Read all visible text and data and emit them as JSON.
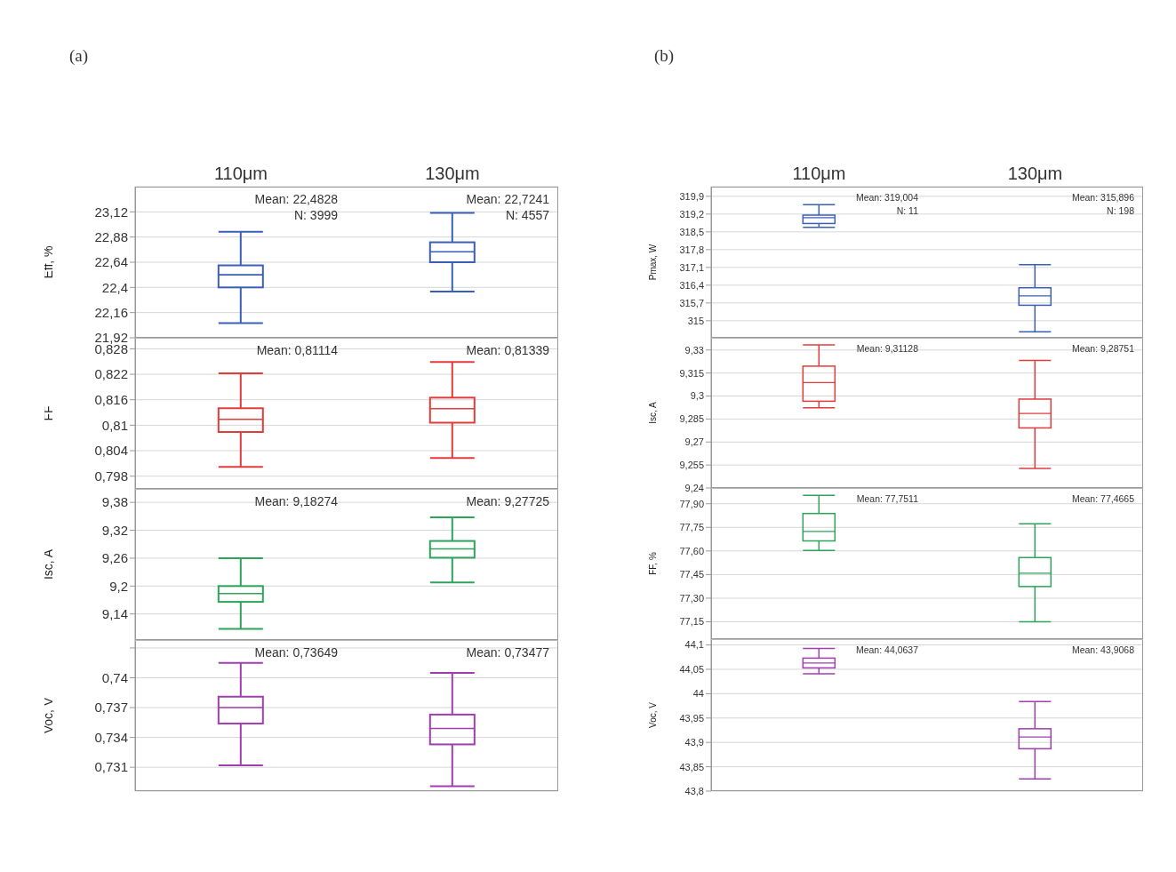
{
  "chart_data": [
    {
      "type": "box",
      "title": "(a)",
      "categories": [
        "110μm",
        "130μm"
      ],
      "ylabel": "Eff, %",
      "color": "#3b5fb6",
      "grid": "y",
      "ylim": [
        21.92,
        23.36
      ],
      "yticks": [
        {
          "value": 21.92,
          "label": "21,92"
        },
        {
          "value": 22.16,
          "label": "22,16"
        },
        {
          "value": 22.4,
          "label": "22,4"
        },
        {
          "value": 22.64,
          "label": "22,64"
        },
        {
          "value": 22.88,
          "label": "22,88"
        },
        {
          "value": 23.12,
          "label": "23,12"
        }
      ],
      "boxes": [
        {
          "low": 22.06,
          "q1": 22.4,
          "median": 22.52,
          "q3": 22.61,
          "high": 22.93
        },
        {
          "low": 22.36,
          "q1": 22.64,
          "median": 22.74,
          "q3": 22.83,
          "high": 23.11
        }
      ],
      "annotations": [
        "Mean: 22,4828",
        "N: 3999",
        "Mean: 22,7241",
        "N: 4557"
      ]
    },
    {
      "type": "box",
      "categories": [
        null,
        null
      ],
      "tick_labels": "y",
      "ylabel": "FF",
      "color": "#e03c3c",
      "grid": "y",
      "ylim": [
        0.795,
        0.8306
      ],
      "yticks": [
        {
          "value": 0.798,
          "label": "0,798"
        },
        {
          "value": 0.804,
          "label": "0,804"
        },
        {
          "value": 0.81,
          "label": "0,81"
        },
        {
          "value": 0.816,
          "label": "0,816"
        },
        {
          "value": 0.822,
          "label": "0,822"
        },
        {
          "value": 0.828,
          "label": "0,828"
        }
      ],
      "boxes": [
        {
          "low": 0.8002,
          "q1": 0.8084,
          "median": 0.8114,
          "q3": 0.814,
          "high": 0.8222
        },
        {
          "low": 0.8023,
          "q1": 0.8106,
          "median": 0.8139,
          "q3": 0.8165,
          "high": 0.8249
        }
      ],
      "annotations": [
        "Mean: 0,81114",
        "Mean: 0,81339"
      ]
    },
    {
      "type": "box",
      "categories": [
        null,
        null
      ],
      "tick_labels": "y",
      "ylabel": "Isc, A",
      "color": "#2ea35a",
      "grid": "y",
      "ylim": [
        9.084,
        9.409
      ],
      "yticks": [
        {
          "value": 9.14,
          "label": "9,14"
        },
        {
          "value": 9.2,
          "label": "9,2"
        },
        {
          "value": 9.26,
          "label": "9,26"
        },
        {
          "value": 9.32,
          "label": "9,32"
        },
        {
          "value": 9.38,
          "label": "9,38"
        }
      ],
      "boxes": [
        {
          "low": 9.108,
          "q1": 9.166,
          "median": 9.184,
          "q3": 9.2,
          "high": 9.26
        },
        {
          "low": 9.208,
          "q1": 9.261,
          "median": 9.28,
          "q3": 9.297,
          "high": 9.348
        }
      ],
      "annotations": [
        "Mean: 9,18274",
        "Mean: 9,27725"
      ]
    },
    {
      "type": "box",
      "categories": [
        null,
        null
      ],
      "tick_labels": "y",
      "ylabel": "Voc, V",
      "color": "#a03db0",
      "grid": "y",
      "ylim": [
        0.7286,
        0.7438
      ],
      "yticks": [
        {
          "value": 0.731,
          "label": "0,731"
        },
        {
          "value": 0.734,
          "label": "0,734"
        },
        {
          "value": 0.737,
          "label": "0,737"
        },
        {
          "value": 0.74,
          "label": "0,74"
        },
        {
          "value": 0.743,
          "label": null
        }
      ],
      "boxes": [
        {
          "low": 0.7312,
          "q1": 0.7354,
          "median": 0.737,
          "q3": 0.7381,
          "high": 0.7415
        },
        {
          "low": 0.7291,
          "q1": 0.7333,
          "median": 0.7349,
          "q3": 0.7363,
          "high": 0.7405
        }
      ],
      "annotations": [
        "Mean: 0,73649",
        "Mean: 0,73477"
      ]
    },
    {
      "type": "box",
      "title": "(b)",
      "categories": [
        "110μm",
        "130μm"
      ],
      "ylabel": "Pmax, W",
      "color": "#3b5fb6",
      "grid": "y",
      "ylim": [
        314.33,
        320.28
      ],
      "yticks": [
        315,
        {
          "value": 315.7,
          "label": "315,7"
        },
        {
          "value": 316.4,
          "label": "316,4"
        },
        {
          "value": 317.1,
          "label": "317,1"
        },
        {
          "value": 317.8,
          "label": "317,8"
        },
        {
          "value": 318.5,
          "label": "318,5"
        },
        {
          "value": 319.2,
          "label": "319,2"
        },
        {
          "value": 319.9,
          "label": "319,9"
        }
      ],
      "boxes": [
        {
          "low": 318.68,
          "q1": 318.83,
          "median": 319.06,
          "q3": 319.16,
          "high": 319.57
        },
        {
          "low": 314.57,
          "q1": 315.61,
          "median": 315.98,
          "q3": 316.3,
          "high": 317.21
        }
      ],
      "annotations": [
        "Mean: 319,004",
        "N: 11",
        "Mean: 315,896",
        "N: 198"
      ]
    },
    {
      "type": "box",
      "categories": [
        null,
        null
      ],
      "tick_labels": "y",
      "ylabel": "Isc, A",
      "color": "#e03c3c",
      "grid": "y",
      "ylim": [
        9.24,
        9.338
      ],
      "yticks": [
        {
          "value": 9.24,
          "label": "9,24"
        },
        {
          "value": 9.255,
          "label": "9,255"
        },
        {
          "value": 9.27,
          "label": "9,27"
        },
        {
          "value": 9.285,
          "label": "9,285"
        },
        {
          "value": 9.3,
          "label": "9,3"
        },
        {
          "value": 9.315,
          "label": "9,315"
        },
        {
          "value": 9.33,
          "label": "9,33"
        }
      ],
      "boxes": [
        {
          "low": 9.2923,
          "q1": 9.2966,
          "median": 9.3088,
          "q3": 9.3195,
          "high": 9.3334
        },
        {
          "low": 9.2527,
          "q1": 9.2792,
          "median": 9.2886,
          "q3": 9.298,
          "high": 9.3232
        }
      ],
      "annotations": [
        "Mean: 9,31128",
        "Mean: 9,28751"
      ]
    },
    {
      "type": "box",
      "categories": [
        null,
        null
      ],
      "tick_labels": "y",
      "ylabel": "FF, %",
      "color": "#2ea35a",
      "grid": "y",
      "ylim": [
        77.04,
        78.0
      ],
      "yticks": [
        {
          "value": 77.15,
          "label": "77,15"
        },
        {
          "value": 77.3,
          "label": "77,30"
        },
        {
          "value": 77.45,
          "label": "77,45"
        },
        {
          "value": 77.6,
          "label": "77,60"
        },
        {
          "value": 77.75,
          "label": "77,75"
        },
        {
          "value": 77.9,
          "label": "77,90"
        }
      ],
      "boxes": [
        {
          "low": 77.604,
          "q1": 77.664,
          "median": 77.724,
          "q3": 77.838,
          "high": 77.954
        },
        {
          "low": 77.15,
          "q1": 77.374,
          "median": 77.459,
          "q3": 77.558,
          "high": 77.773
        }
      ],
      "annotations": [
        "Mean: 77,7511",
        "Mean: 77,4665"
      ]
    },
    {
      "type": "box",
      "categories": [
        null,
        null
      ],
      "tick_labels": "y",
      "ylabel": "Voc, V",
      "color": "#a03db0",
      "grid": "y",
      "ylim": [
        43.8,
        44.112
      ],
      "yticks": [
        {
          "value": 43.8,
          "label": "43,8"
        },
        {
          "value": 43.85,
          "label": "43,85"
        },
        {
          "value": 43.9,
          "label": "43,9"
        },
        {
          "value": 43.95,
          "label": "43,95"
        },
        44,
        {
          "value": 44.05,
          "label": "44,05"
        },
        {
          "value": 44.1,
          "label": "44,1"
        }
      ],
      "boxes": [
        {
          "low": 44.041,
          "q1": 44.053,
          "median": 44.063,
          "q3": 44.073,
          "high": 44.093
        },
        {
          "low": 43.825,
          "q1": 43.887,
          "median": 43.911,
          "q3": 43.928,
          "high": 43.984
        }
      ],
      "annotations": [
        "Mean: 44,0637",
        "Mean: 43,9068"
      ]
    }
  ]
}
